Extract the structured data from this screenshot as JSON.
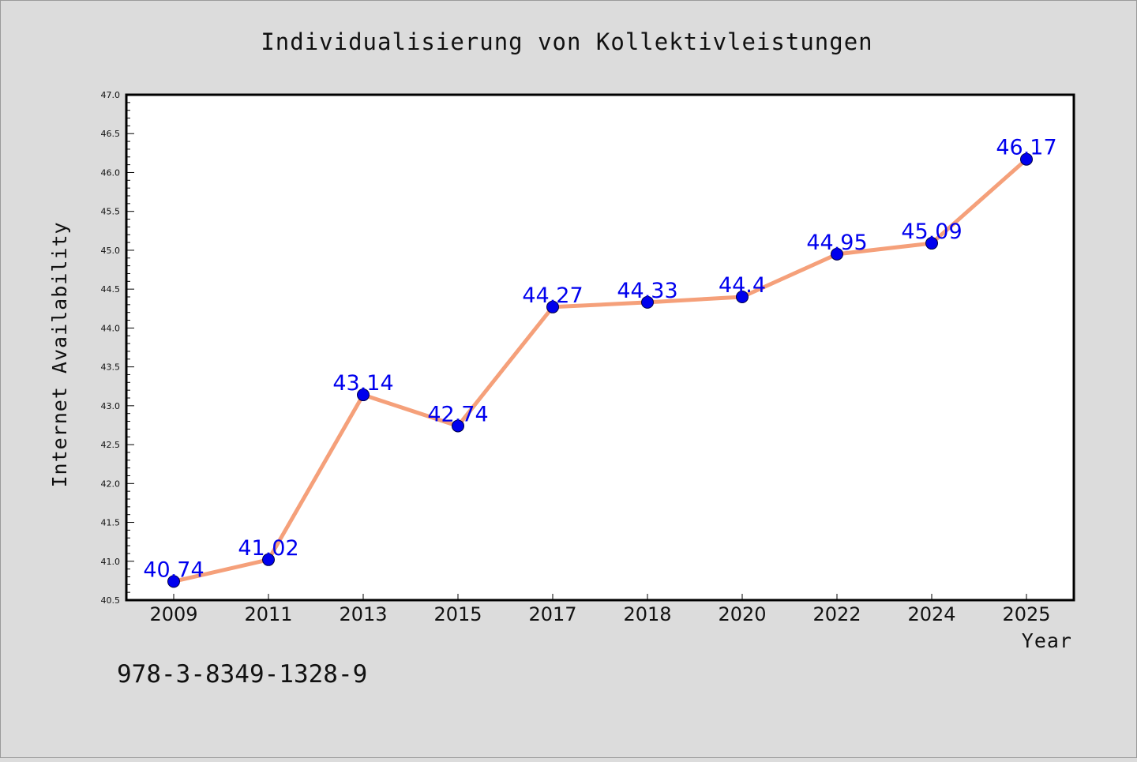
{
  "colors": {
    "background": "#dcdcdc",
    "plot_background": "#ffffff",
    "line": "#f5a07a",
    "marker": "#0000ee",
    "data_label": "#0000ee"
  },
  "chart_data": {
    "type": "line",
    "title": "Individualisierung von Kollektivleistungen",
    "xlabel": "Year",
    "ylabel": "Internet Availability",
    "categories": [
      "2009",
      "2011",
      "2013",
      "2015",
      "2017",
      "2018",
      "2020",
      "2022",
      "2024",
      "2025"
    ],
    "series": [
      {
        "values": [
          40.74,
          41.02,
          43.14,
          42.74,
          44.27,
          44.33,
          44.4,
          44.95,
          45.09,
          46.17
        ]
      }
    ],
    "data_labels": [
      "40.74",
      "41.02",
      "43.14",
      "42.74",
      "44.27",
      "44.33",
      "44.4",
      "44.95",
      "45.09",
      "46.17"
    ],
    "ylim": [
      40.5,
      47.0
    ],
    "y_major_ticks": [
      "40.5",
      "41.0",
      "41.5",
      "42.0",
      "42.5",
      "43.0",
      "43.5",
      "44.0",
      "44.5",
      "45.0",
      "45.5",
      "46.0",
      "46.5",
      "47.0"
    ],
    "y_minor_step": 0.1,
    "grid": false,
    "legend": "none"
  },
  "annotation": {
    "text": "978-3-8349-1328-9"
  }
}
